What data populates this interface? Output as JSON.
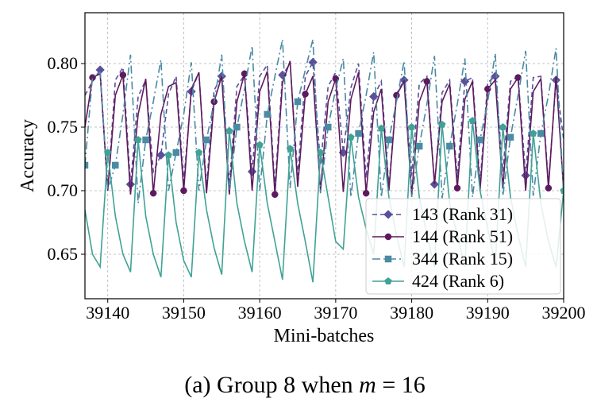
{
  "chart_data": {
    "type": "line",
    "title": "",
    "xlabel": "Mini-batches",
    "ylabel": "Accuracy",
    "xlim": [
      39137,
      39200
    ],
    "ylim": [
      0.615,
      0.84
    ],
    "xticks": [
      39140,
      39150,
      39160,
      39170,
      39180,
      39190,
      39200
    ],
    "yticks": [
      0.65,
      0.7,
      0.75,
      0.8
    ],
    "ytick_labels": [
      "0.65",
      "0.70",
      "0.75",
      "0.80"
    ],
    "grid": true,
    "legend_position": "lower-right",
    "caption": {
      "prefix": "(a) Group 8 when ",
      "math": "m",
      "suffix": " = 16"
    },
    "x": [
      39137,
      39138,
      39139,
      39140,
      39141,
      39142,
      39143,
      39144,
      39145,
      39146,
      39147,
      39148,
      39149,
      39150,
      39151,
      39152,
      39153,
      39154,
      39155,
      39156,
      39157,
      39158,
      39159,
      39160,
      39161,
      39162,
      39163,
      39164,
      39165,
      39166,
      39167,
      39168,
      39169,
      39170,
      39171,
      39172,
      39173,
      39174,
      39175,
      39176,
      39177,
      39178,
      39179,
      39180,
      39181,
      39182,
      39183,
      39184,
      39185,
      39186,
      39187,
      39188,
      39189,
      39190,
      39191,
      39192,
      39193,
      39194,
      39195,
      39196,
      39197,
      39198,
      39199,
      39200
    ],
    "series": [
      {
        "name": "143 (Rank 31)",
        "color": "#5b4f9a",
        "dash": "6,4",
        "marker": "diamond",
        "values": [
          0.775,
          0.786,
          0.795,
          0.7,
          0.787,
          0.797,
          0.705,
          0.774,
          0.787,
          0.715,
          0.728,
          0.776,
          0.79,
          0.707,
          0.778,
          0.793,
          0.703,
          0.779,
          0.79,
          0.704,
          0.782,
          0.791,
          0.715,
          0.79,
          0.799,
          0.703,
          0.791,
          0.8,
          0.712,
          0.79,
          0.801,
          0.72,
          0.782,
          0.793,
          0.73,
          0.781,
          0.8,
          0.71,
          0.774,
          0.786,
          0.703,
          0.776,
          0.787,
          0.712,
          0.784,
          0.79,
          0.705,
          0.777,
          0.787,
          0.71,
          0.786,
          0.789,
          0.706,
          0.785,
          0.79,
          0.715,
          0.786,
          0.79,
          0.712,
          0.789,
          0.79,
          0.705,
          0.787,
          0.74
        ]
      },
      {
        "name": "144 (Rank 51)",
        "color": "#5e1a5e",
        "dash": "",
        "marker": "circle",
        "values": [
          0.75,
          0.789,
          0.792,
          0.7,
          0.775,
          0.791,
          0.697,
          0.76,
          0.788,
          0.698,
          0.76,
          0.782,
          0.785,
          0.7,
          0.78,
          0.793,
          0.698,
          0.77,
          0.79,
          0.697,
          0.77,
          0.792,
          0.7,
          0.778,
          0.794,
          0.697,
          0.785,
          0.802,
          0.703,
          0.776,
          0.79,
          0.7,
          0.77,
          0.788,
          0.699,
          0.772,
          0.793,
          0.698,
          0.762,
          0.78,
          0.7,
          0.775,
          0.786,
          0.697,
          0.77,
          0.786,
          0.705,
          0.77,
          0.784,
          0.702,
          0.772,
          0.786,
          0.7,
          0.78,
          0.787,
          0.702,
          0.78,
          0.789,
          0.7,
          0.778,
          0.788,
          0.702,
          0.79,
          0.7
        ]
      },
      {
        "name": "344 (Rank 15)",
        "color": "#4a8aa3",
        "dash": "10,4,2,4",
        "marker": "square",
        "values": [
          0.72,
          0.79,
          0.793,
          0.7,
          0.72,
          0.76,
          0.807,
          0.69,
          0.74,
          0.77,
          0.803,
          0.7,
          0.73,
          0.76,
          0.801,
          0.7,
          0.74,
          0.77,
          0.807,
          0.7,
          0.75,
          0.78,
          0.814,
          0.7,
          0.76,
          0.79,
          0.819,
          0.702,
          0.77,
          0.795,
          0.819,
          0.698,
          0.75,
          0.78,
          0.804,
          0.695,
          0.745,
          0.775,
          0.809,
          0.695,
          0.74,
          0.77,
          0.802,
          0.695,
          0.735,
          0.768,
          0.806,
          0.694,
          0.735,
          0.768,
          0.804,
          0.695,
          0.74,
          0.77,
          0.808,
          0.696,
          0.742,
          0.775,
          0.81,
          0.696,
          0.745,
          0.775,
          0.812,
          0.696
        ]
      },
      {
        "name": "424 (Rank 6)",
        "color": "#40a296",
        "dash": "",
        "marker": "pentagon",
        "values": [
          0.685,
          0.65,
          0.64,
          0.73,
          0.68,
          0.65,
          0.636,
          0.74,
          0.68,
          0.65,
          0.632,
          0.728,
          0.675,
          0.645,
          0.632,
          0.73,
          0.685,
          0.655,
          0.634,
          0.747,
          0.69,
          0.66,
          0.636,
          0.736,
          0.69,
          0.66,
          0.63,
          0.733,
          0.69,
          0.66,
          0.628,
          0.73,
          0.695,
          0.66,
          0.654,
          0.742,
          0.695,
          0.67,
          0.65,
          0.749,
          0.695,
          0.665,
          0.64,
          0.75,
          0.695,
          0.665,
          0.64,
          0.752,
          0.69,
          0.665,
          0.64,
          0.755,
          0.7,
          0.67,
          0.642,
          0.75,
          0.695,
          0.665,
          0.64,
          0.745,
          0.69,
          0.66,
          0.64,
          0.7
        ]
      }
    ]
  }
}
